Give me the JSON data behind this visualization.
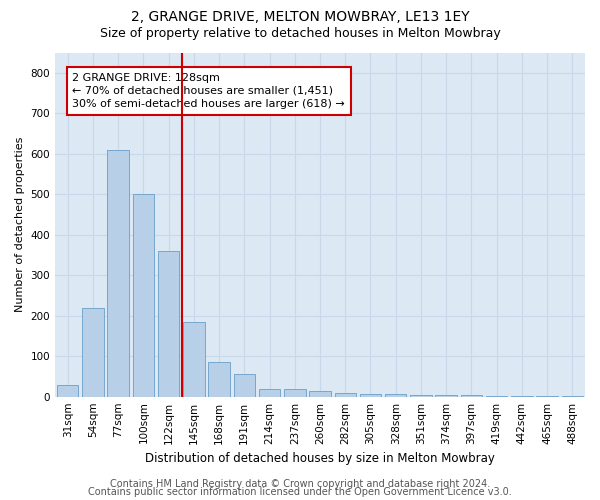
{
  "title1": "2, GRANGE DRIVE, MELTON MOWBRAY, LE13 1EY",
  "title2": "Size of property relative to detached houses in Melton Mowbray",
  "xlabel": "Distribution of detached houses by size in Melton Mowbray",
  "ylabel": "Number of detached properties",
  "categories": [
    "31sqm",
    "54sqm",
    "77sqm",
    "100sqm",
    "122sqm",
    "145sqm",
    "168sqm",
    "191sqm",
    "214sqm",
    "237sqm",
    "260sqm",
    "282sqm",
    "305sqm",
    "328sqm",
    "351sqm",
    "374sqm",
    "397sqm",
    "419sqm",
    "442sqm",
    "465sqm",
    "488sqm"
  ],
  "values": [
    30,
    220,
    610,
    500,
    360,
    185,
    85,
    55,
    20,
    18,
    14,
    8,
    6,
    6,
    5,
    5,
    5,
    2,
    2,
    1,
    1
  ],
  "bar_color": "#b8cfe8",
  "bar_edge_color": "#6a9fc8",
  "vline_x": 4.52,
  "vline_color": "#cc0000",
  "annotation_text": "2 GRANGE DRIVE: 128sqm\n← 70% of detached houses are smaller (1,451)\n30% of semi-detached houses are larger (618) →",
  "annotation_box_color": "#ffffff",
  "annotation_box_edge": "#cc0000",
  "ylim": [
    0,
    850
  ],
  "yticks": [
    0,
    100,
    200,
    300,
    400,
    500,
    600,
    700,
    800
  ],
  "grid_color": "#c8d8e8",
  "background_color": "#dce8f4",
  "footer1": "Contains HM Land Registry data © Crown copyright and database right 2024.",
  "footer2": "Contains public sector information licensed under the Open Government Licence v3.0.",
  "title1_fontsize": 10,
  "title2_fontsize": 9,
  "xlabel_fontsize": 8.5,
  "ylabel_fontsize": 8,
  "tick_fontsize": 7.5,
  "annotation_fontsize": 8,
  "footer_fontsize": 7
}
